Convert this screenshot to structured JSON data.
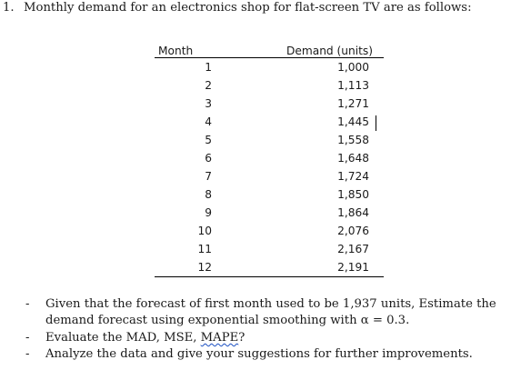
{
  "question": {
    "number": "1.",
    "text": "Monthly demand for an electronics shop for flat-screen TV are as follows:"
  },
  "table": {
    "headers": [
      "Month",
      "Demand (units)"
    ],
    "rows": [
      {
        "month": "1",
        "demand": "1,000"
      },
      {
        "month": "2",
        "demand": "1,113"
      },
      {
        "month": "3",
        "demand": "1,271"
      },
      {
        "month": "4",
        "demand": "1,445"
      },
      {
        "month": "5",
        "demand": "1,558"
      },
      {
        "month": "6",
        "demand": "1,648"
      },
      {
        "month": "7",
        "demand": "1,724"
      },
      {
        "month": "8",
        "demand": "1,850"
      },
      {
        "month": "9",
        "demand": "1,864"
      },
      {
        "month": "10",
        "demand": "2,076"
      },
      {
        "month": "11",
        "demand": "2,167"
      },
      {
        "month": "12",
        "demand": "2,191"
      }
    ]
  },
  "tasks": [
    {
      "bullet": "-",
      "line1": "Given that the forecast of first month used to be 1,937 units, Estimate the",
      "line2": "demand forecast using exponential smoothing with α = 0.3."
    },
    {
      "bullet": "-",
      "prefix": "Evaluate the MAD, MSE, ",
      "flagged": "MAPE",
      "suffix": "?"
    },
    {
      "bullet": "-",
      "line1": "Analyze the data and give your suggestions for further improvements."
    }
  ]
}
